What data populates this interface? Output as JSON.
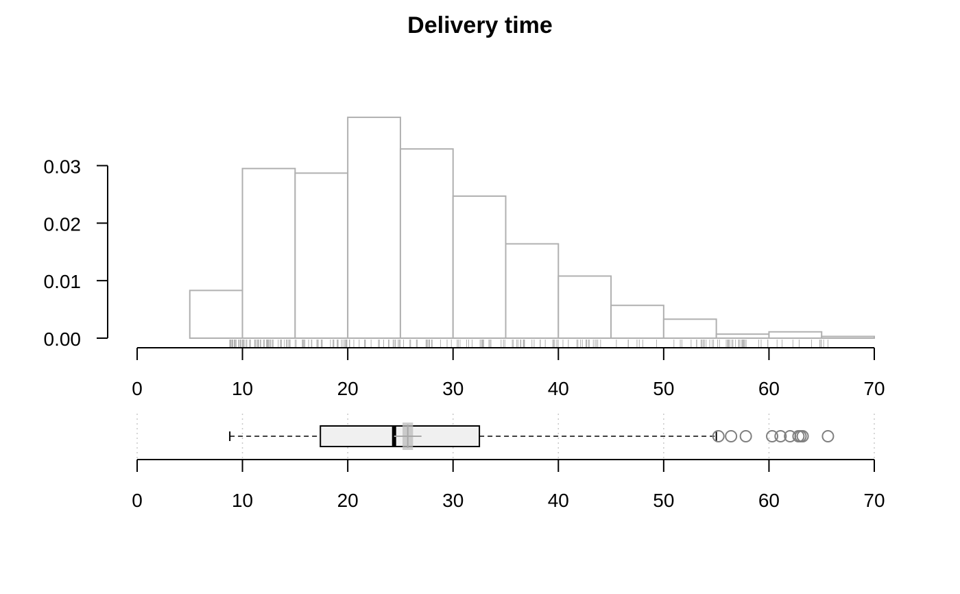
{
  "chart_data": {
    "title": "Delivery time",
    "type": "histogram+boxplot",
    "xlim": [
      0,
      70
    ],
    "x_ticks": [
      "0",
      "10",
      "20",
      "30",
      "40",
      "50",
      "60",
      "70"
    ],
    "histogram": {
      "type": "bar",
      "y_ticks": [
        "0.00",
        "0.01",
        "0.02",
        "0.03"
      ],
      "ylim": [
        0,
        0.038
      ],
      "bin_width": 5,
      "bins": [
        {
          "start": 5,
          "end": 10,
          "density": 0.0083
        },
        {
          "start": 10,
          "end": 15,
          "density": 0.0295
        },
        {
          "start": 15,
          "end": 20,
          "density": 0.0287
        },
        {
          "start": 20,
          "end": 25,
          "density": 0.0384
        },
        {
          "start": 25,
          "end": 30,
          "density": 0.0329
        },
        {
          "start": 30,
          "end": 35,
          "density": 0.0247
        },
        {
          "start": 35,
          "end": 40,
          "density": 0.0164
        },
        {
          "start": 40,
          "end": 45,
          "density": 0.0108
        },
        {
          "start": 45,
          "end": 50,
          "density": 0.0057
        },
        {
          "start": 50,
          "end": 55,
          "density": 0.0033
        },
        {
          "start": 55,
          "end": 60,
          "density": 0.0007
        },
        {
          "start": 60,
          "end": 65,
          "density": 0.0011
        },
        {
          "start": 65,
          "end": 70,
          "density": 0.0003
        }
      ],
      "rug_range": [
        8.8,
        65.6
      ]
    },
    "boxplot": {
      "whisker_low": 8.8,
      "q1": 17.4,
      "median": 24.4,
      "q3": 32.5,
      "whisker_high": 55.0,
      "mean": 25.7,
      "mean_ci": [
        25.2,
        26.2
      ],
      "outliers": [
        55.2,
        56.4,
        57.8,
        60.3,
        61.1,
        62.0,
        62.8,
        63.0,
        63.2,
        65.6
      ],
      "grid": "vertical dotted at ticks"
    },
    "colors": {
      "bar_stroke": "#b0b0b0",
      "box_fill": "#f0f0f0",
      "outlier": "#7f7f7f",
      "mean_marker": "#bdbdbd",
      "grid": "#c8c8c8",
      "axis": "#000000"
    }
  }
}
